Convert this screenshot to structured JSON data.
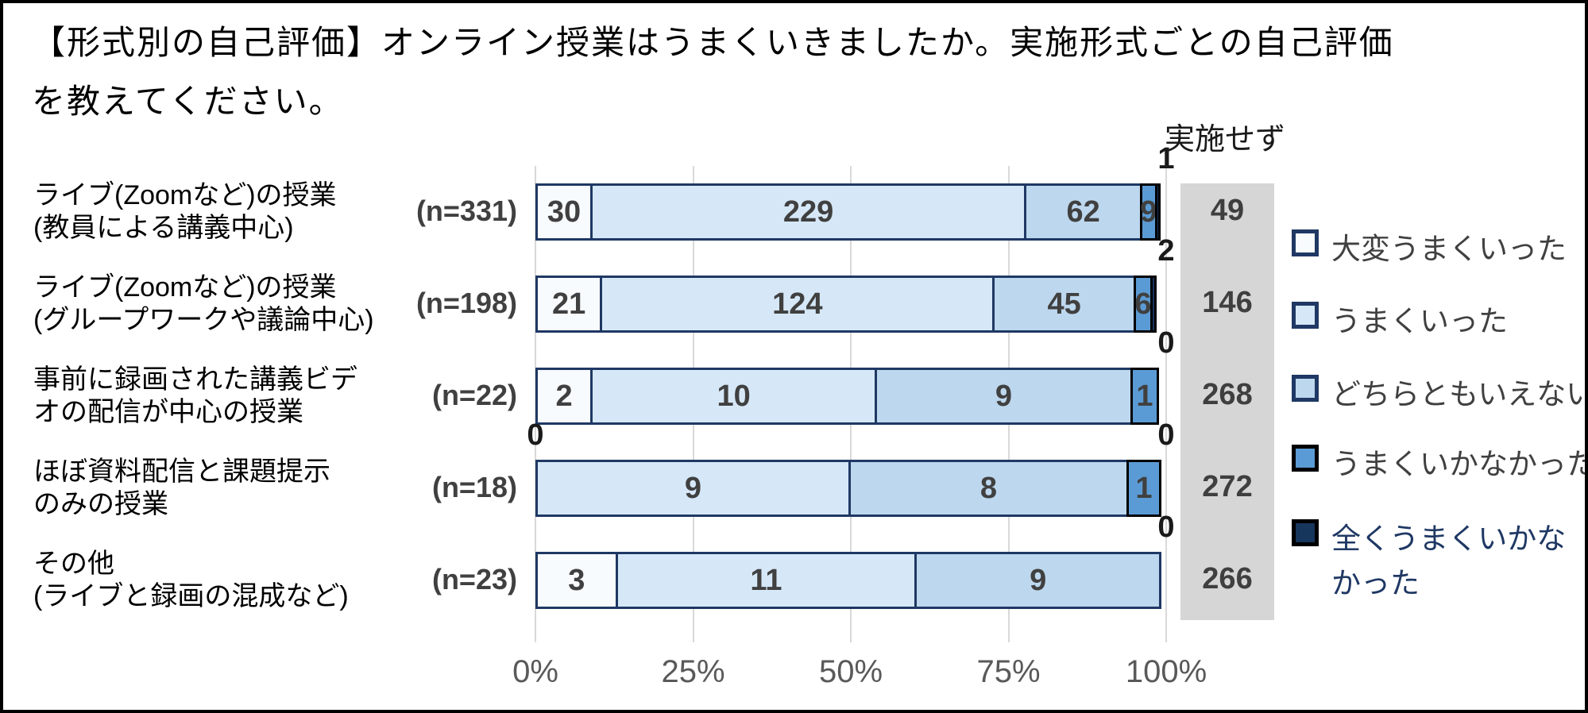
{
  "title": {
    "line1": "【形式別の自己評価】オンライン授業はうまくいきましたか。実施形式ごとの自己評価",
    "line2": "を教えてください。"
  },
  "chart_data": {
    "type": "bar",
    "orientation": "horizontal-stacked-100percent",
    "title": "【形式別の自己評価】オンライン授業はうまくいきましたか。実施形式ごとの自己評価を教えてください。",
    "series_labels": [
      "大変うまくいった",
      "うまくいった",
      "どちらともいえない",
      "うまくいかなかった",
      "全くうまくいかなかった"
    ],
    "x_ticks": [
      "0%",
      "25%",
      "50%",
      "75%",
      "100%"
    ],
    "xlim_percent": [
      0,
      100
    ],
    "grid": true,
    "legend_position": "right",
    "not_implemented_header": "実施せず",
    "categories": [
      {
        "label_lines": [
          "ライブ(Zoomなど)の授業",
          "(教員による講義中心)"
        ],
        "n_label": "(n=331)",
        "n": 331,
        "values": [
          30,
          229,
          62,
          9,
          1
        ],
        "not_implemented": 49
      },
      {
        "label_lines": [
          "ライブ(Zoomなど)の授業",
          "(グループワークや議論中心)"
        ],
        "n_label": "(n=198)",
        "n": 198,
        "values": [
          21,
          124,
          45,
          6,
          2
        ],
        "not_implemented": 146
      },
      {
        "label_lines": [
          "事前に録画された講義ビデ",
          "オの配信が中心の授業"
        ],
        "n_label": "(n=22)",
        "n": 22,
        "values": [
          2,
          10,
          9,
          1,
          0
        ],
        "not_implemented": 268
      },
      {
        "label_lines": [
          "ほぼ資料配信と課題提示",
          "のみの授業"
        ],
        "n_label": "(n=18)",
        "n": 18,
        "values": [
          0,
          9,
          8,
          1,
          0
        ],
        "not_implemented": 272
      },
      {
        "label_lines": [
          "その他",
          "(ライブと録画の混成など)"
        ],
        "n_label": "(n=23)",
        "n": 23,
        "values": [
          3,
          11,
          9,
          0,
          0
        ],
        "not_implemented": 266
      }
    ]
  },
  "legend": {
    "items": [
      {
        "lines": [
          "大変うまくいった"
        ]
      },
      {
        "lines": [
          "うまくいった"
        ]
      },
      {
        "lines": [
          "どちらともいえない"
        ]
      },
      {
        "lines": [
          "うまくいかなかった"
        ]
      },
      {
        "lines": [
          "全くうまくいかな",
          "かった"
        ]
      }
    ]
  },
  "colors": {
    "segment_fills": [
      "#F7FBFE",
      "#D6E8F8",
      "#BDD7EE",
      "#5B9BD5",
      "#17365C"
    ],
    "segment_borders": [
      "#1F3864",
      "#1F3864",
      "#1F3864",
      "#000000",
      "#000000"
    ],
    "gray_column": "#D6D6D6",
    "gridline": "#D9D9D9",
    "value_text": "#404040",
    "axis_text": "#595959",
    "legend_text": "#404040",
    "legend_last_item_text": "#1F3864",
    "frame_border": "#000000"
  }
}
